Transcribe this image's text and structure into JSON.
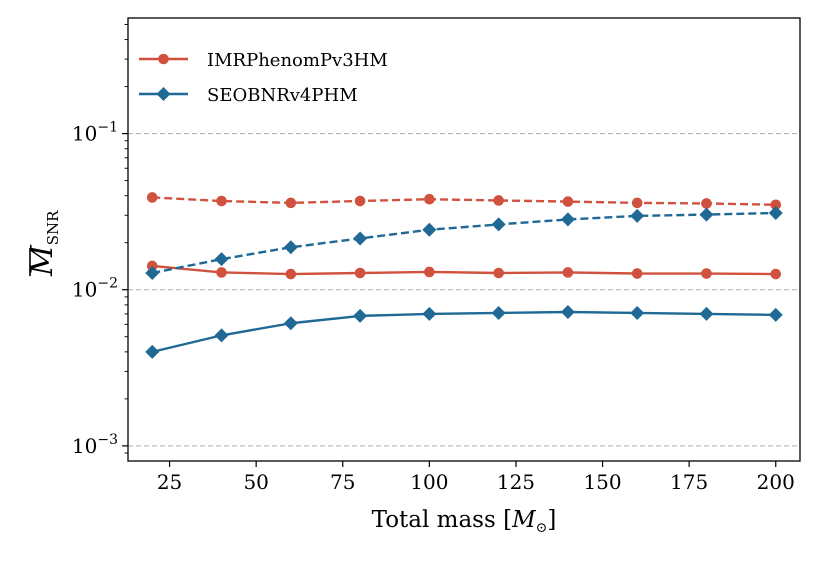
{
  "chart_data": {
    "type": "line",
    "title": "",
    "xlabel": "Total mass [M⊙]",
    "xlabel_parts": {
      "prefix": "Total mass [",
      "symbol": "M",
      "subscript": "⊙",
      "suffix": "]"
    },
    "ylabel": "M̅ SNR",
    "ylabel_parts": {
      "symbol": "M",
      "subscript": "SNR"
    },
    "yscale": "log",
    "xlim": [
      13,
      207
    ],
    "ylim": [
      0.0008,
      0.55
    ],
    "x": [
      20,
      40,
      60,
      80,
      100,
      120,
      140,
      160,
      180,
      200
    ],
    "x_ticks": [
      25,
      50,
      75,
      100,
      125,
      150,
      175,
      200
    ],
    "x_tick_labels": [
      "25",
      "50",
      "75",
      "100",
      "125",
      "150",
      "175",
      "200"
    ],
    "y_ticks": [
      {
        "value": 0.1,
        "base": "10",
        "exp": "−1"
      },
      {
        "value": 0.01,
        "base": "10",
        "exp": "−2"
      },
      {
        "value": 0.001,
        "base": "10",
        "exp": "−3"
      }
    ],
    "grid": {
      "y_major": true,
      "style": "dashed"
    },
    "legend_position": "top-left",
    "series": [
      {
        "name": "IMRPhenomPv3HM",
        "key": "imr-solid",
        "color": "#d1513f",
        "marker": "circle",
        "linestyle": "solid",
        "show_in_legend": true,
        "values": [
          0.0142,
          0.0129,
          0.0126,
          0.0128,
          0.013,
          0.0128,
          0.0129,
          0.0127,
          0.0127,
          0.0126
        ]
      },
      {
        "name": "IMRPhenomPv3HM",
        "key": "imr-dashed",
        "color": "#d1513f",
        "marker": "circle",
        "linestyle": "dashed",
        "show_in_legend": false,
        "values": [
          0.039,
          0.037,
          0.036,
          0.037,
          0.038,
          0.0373,
          0.0367,
          0.036,
          0.0357,
          0.035
        ]
      },
      {
        "name": "SEOBNRv4PHM",
        "key": "seob-solid",
        "color": "#1f6994",
        "marker": "diamond",
        "linestyle": "solid",
        "show_in_legend": true,
        "values": [
          0.004,
          0.0051,
          0.0061,
          0.0068,
          0.007,
          0.0071,
          0.0072,
          0.0071,
          0.007,
          0.0069
        ]
      },
      {
        "name": "SEOBNRv4PHM",
        "key": "seob-dashed",
        "color": "#1f6994",
        "marker": "diamond",
        "linestyle": "dashed",
        "show_in_legend": false,
        "values": [
          0.0128,
          0.0157,
          0.0187,
          0.0213,
          0.0242,
          0.0262,
          0.0282,
          0.0297,
          0.0303,
          0.031
        ]
      }
    ]
  }
}
